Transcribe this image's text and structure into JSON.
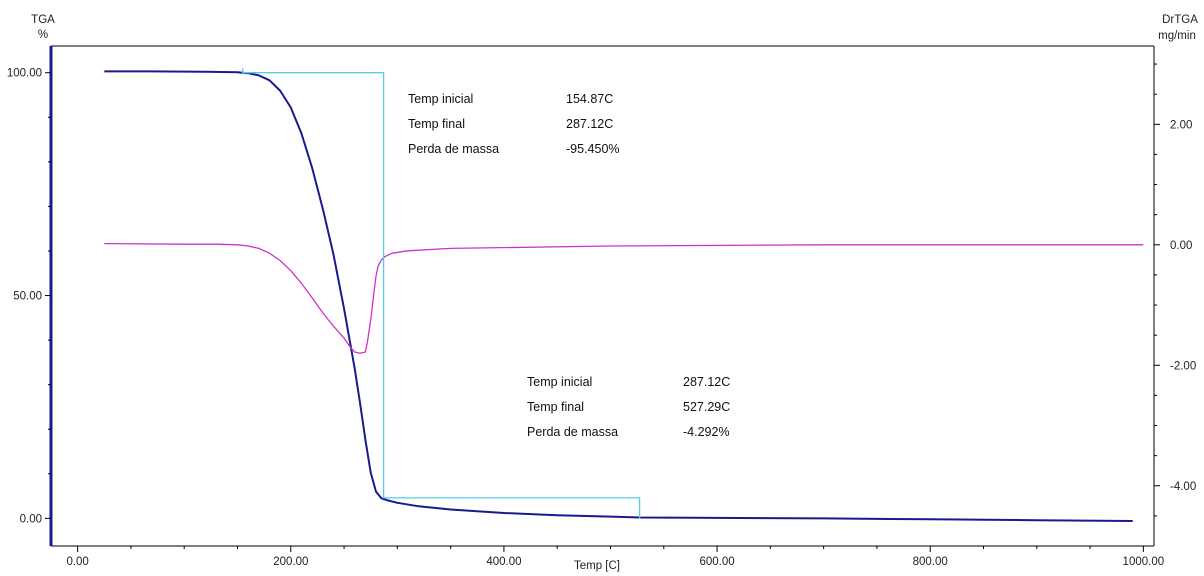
{
  "chart_data": {
    "type": "line",
    "xlabel": "Temp  [C]",
    "y_left_label": "TGA",
    "y_left_unit": "%",
    "y_right_label": "DrTGA",
    "y_right_unit": "mg/min",
    "xlim": [
      -25,
      1010
    ],
    "ylim_left": [
      -6.2,
      106
    ],
    "ylim_right": [
      -5.0,
      3.3
    ],
    "x_ticks": [
      0,
      200,
      400,
      600,
      800,
      1000
    ],
    "x_tick_labels": [
      "0.00",
      "200.00",
      "400.00",
      "600.00",
      "800.00",
      "1000.00"
    ],
    "y_left_ticks": [
      0,
      50,
      100
    ],
    "y_left_tick_labels": [
      "0.00",
      "50.00",
      "100.00"
    ],
    "y_right_ticks": [
      -4,
      -2,
      0,
      2
    ],
    "y_right_tick_labels": [
      "-4.00",
      "-2.00",
      "0.00",
      "2.00"
    ],
    "grid": false,
    "series": [
      {
        "axis": "left",
        "color": "#1a1a8c",
        "x": [
          25,
          70,
          120,
          150,
          160,
          170,
          180,
          190,
          200,
          210,
          220,
          230,
          240,
          250,
          260,
          265,
          270,
          275,
          280,
          285,
          290,
          300,
          320,
          350,
          400,
          450,
          500,
          527,
          600,
          700,
          800,
          900,
          990
        ],
        "y": [
          100.3,
          100.3,
          100.2,
          100.1,
          99.9,
          99.4,
          98.3,
          96.0,
          92.2,
          86.4,
          78.7,
          69.5,
          59.3,
          47.0,
          33.6,
          25.8,
          17.6,
          10.3,
          6.0,
          4.5,
          4.1,
          3.5,
          2.7,
          2.0,
          1.2,
          0.7,
          0.4,
          0.2,
          0.1,
          0.0,
          -0.2,
          -0.4,
          -0.6
        ]
      },
      {
        "axis": "right",
        "color": "#cc33cc",
        "x": [
          25,
          100,
          130,
          150,
          160,
          170,
          180,
          190,
          200,
          210,
          220,
          230,
          240,
          250,
          255,
          260,
          265,
          270,
          272,
          275,
          278,
          280,
          282,
          285,
          288,
          295,
          310,
          350,
          500,
          700,
          900,
          1000
        ],
        "y": [
          0.02,
          0.01,
          0.01,
          0.0,
          -0.02,
          -0.06,
          -0.14,
          -0.26,
          -0.43,
          -0.64,
          -0.88,
          -1.13,
          -1.35,
          -1.55,
          -1.68,
          -1.78,
          -1.8,
          -1.78,
          -1.6,
          -1.25,
          -0.8,
          -0.52,
          -0.35,
          -0.25,
          -0.2,
          -0.14,
          -0.1,
          -0.06,
          -0.02,
          0.0,
          0.0,
          0.0
        ]
      },
      {
        "axis": "left",
        "color": "#55ccee",
        "step": true,
        "x": [
          154.87,
          154.87,
          287.12,
          287.12,
          527.29,
          527.29
        ],
        "y": [
          101.0,
          100.0,
          100.0,
          4.6,
          4.6,
          0.0
        ]
      }
    ],
    "annotations": [
      {
        "rows": [
          {
            "label": "Temp inicial",
            "value": "154.87C"
          },
          {
            "label": "Temp final",
            "value": "287.12C"
          },
          {
            "label": "Perda de massa",
            "value": "-95.450%"
          }
        ]
      },
      {
        "rows": [
          {
            "label": "Temp inicial",
            "value": "287.12C"
          },
          {
            "label": "Temp final",
            "value": "527.29C"
          },
          {
            "label": "Perda de massa",
            "value": "-4.292%"
          }
        ]
      }
    ]
  }
}
